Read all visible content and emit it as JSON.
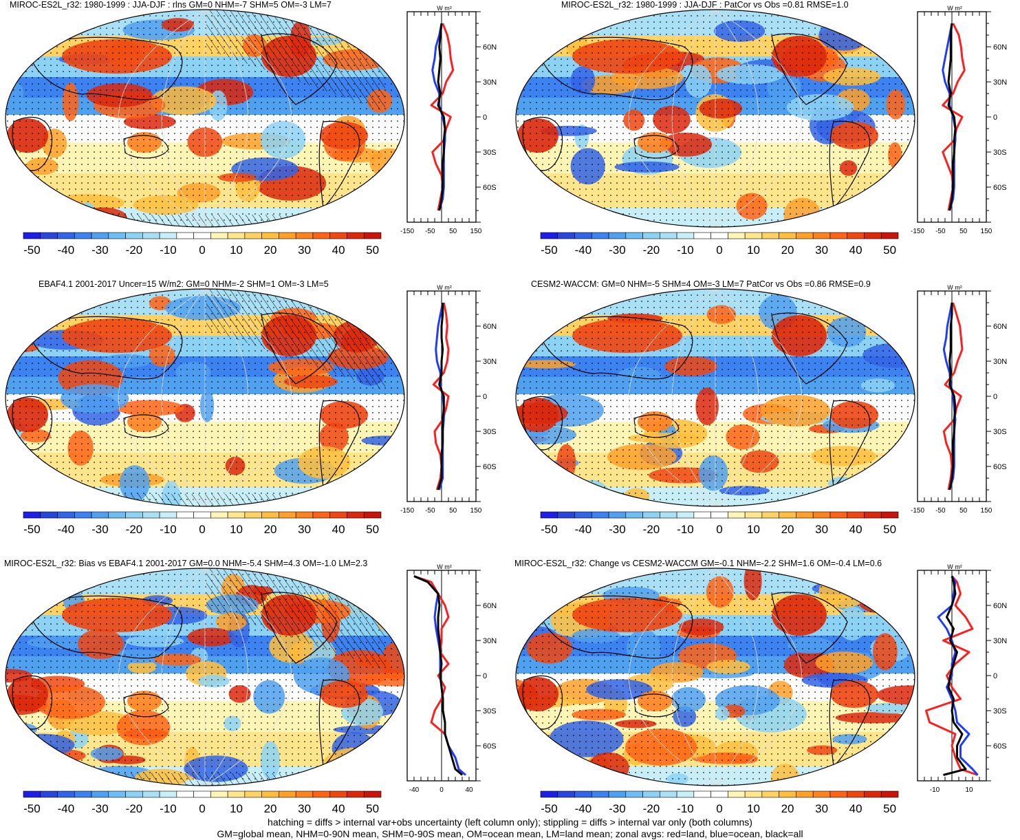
{
  "colorbar": {
    "labels": [
      "-50",
      "-40",
      "-30",
      "-20",
      "-10",
      "0",
      "10",
      "20",
      "30",
      "40",
      "50"
    ],
    "colors": [
      "#1e1ee6",
      "#2846dc",
      "#3264e6",
      "#3c82f0",
      "#50a0f0",
      "#6ebef5",
      "#8cd2f5",
      "#aae0f5",
      "#c8eef8",
      "#ffffff",
      "#ffffff",
      "#fff5b4",
      "#ffe68c",
      "#ffd264",
      "#ffbe3c",
      "#ffa028",
      "#ff821e",
      "#ff6414",
      "#f0460f",
      "#dc280a",
      "#c8140a"
    ]
  },
  "zonal_axis": {
    "unit": "W m²",
    "lat_labels": [
      "60N",
      "30N",
      "0",
      "30S",
      "60S"
    ]
  },
  "series_colors": {
    "land": "#ff1e1e",
    "ocean": "#1e3cff",
    "all": "#000000"
  },
  "footer": {
    "line1": "hatching = diffs > internal var+obs uncertainty (left column only); stippling = diffs > internal var only (both columns)",
    "line2": "GM=global mean, NHM=0-90N mean, SHM=0-90S mean, OM=ocean mean, LM=land mean; zonal avgs: red=land, blue=ocean, black=all"
  },
  "panels": [
    {
      "title": "MIROC-ES2L_r32: 1980-1999 : JJA-DJF : rlns GM=0 NHM=-7 SHM=5 OM=-3 LM=7",
      "xticks": [
        "-150",
        "-50",
        "50",
        "150"
      ],
      "xlim": [
        -150,
        150
      ],
      "hatch": true
    },
    {
      "title": "MIROC-ES2L_r32: 1980-1999 : JJA-DJF : PatCor vs Obs =0.81 RMSE=1.0",
      "xticks": [
        "-150",
        "-50",
        "50",
        "150"
      ],
      "xlim": [
        -150,
        150
      ],
      "hatch": false
    },
    {
      "title": "EBAF4.1 2001-2017 Uncer=15 W/m2: GM=0 NHM=-2 SHM=1 OM=-3 LM=5",
      "xticks": [
        "-150",
        "-50",
        "50",
        "150"
      ],
      "xlim": [
        -150,
        150
      ],
      "hatch": true
    },
    {
      "title": "CESM2-WACCM: GM=0 NHM=-5 SHM=4 OM=-3 LM=7 PatCor vs Obs =0.86 RMSE=0.9",
      "xticks": [
        "-150",
        "-50",
        "50",
        "150"
      ],
      "xlim": [
        -150,
        150
      ],
      "hatch": false
    },
    {
      "title": "MIROC-ES2L_r32: Bias vs EBAF4.1 2001-2017 GM=0.0 NHM=-5.4 SHM=4.3 OM=-1.0 LM=2.3",
      "xticks": [
        "-40",
        "0",
        "40"
      ],
      "xlim": [
        -50,
        50
      ],
      "hatch": true
    },
    {
      "title": "MIROC-ES2L_r32: Change vs CESM2-WACCM GM=-0.1 NHM=-2.2 SHM=1.6 OM=-0.4 LM=0.6",
      "xticks": [
        "-10",
        "10"
      ],
      "xlim": [
        -20,
        20
      ],
      "hatch": false
    }
  ],
  "chart_data": [
    {
      "type": "line",
      "title": "MIROC-ES2L_r32: 1980-1999 : JJA-DJF : rlns GM=0 NHM=-7 SHM=5 OM=-3 LM=7",
      "ylabel": "W m²",
      "xlim": [
        -150,
        150
      ],
      "ylim": [
        -90,
        90
      ],
      "y": [
        80,
        70,
        60,
        50,
        40,
        30,
        20,
        10,
        0,
        -10,
        -20,
        -30,
        -40,
        -50,
        -60,
        -70,
        -80
      ],
      "series": [
        {
          "name": "land",
          "values": [
            5,
            25,
            35,
            40,
            50,
            20,
            5,
            -45,
            40,
            20,
            10,
            -40,
            -25,
            0,
            5,
            -5,
            -15
          ]
        },
        {
          "name": "ocean",
          "values": [
            0,
            -10,
            -25,
            -30,
            -40,
            -30,
            -10,
            -10,
            5,
            15,
            15,
            10,
            10,
            10,
            10,
            5,
            -10
          ]
        },
        {
          "name": "all",
          "values": [
            0,
            -5,
            -10,
            -5,
            -10,
            -15,
            -5,
            -15,
            10,
            15,
            10,
            10,
            5,
            5,
            5,
            0,
            -10
          ]
        }
      ]
    },
    {
      "type": "line",
      "title": "MIROC-ES2L_r32: 1980-1999 : JJA-DJF : PatCor vs Obs =0.81 RMSE=1.0",
      "ylabel": "W m²",
      "xlim": [
        -150,
        150
      ],
      "ylim": [
        -90,
        90
      ],
      "y": [
        80,
        70,
        60,
        50,
        40,
        30,
        20,
        10,
        0,
        -10,
        -20,
        -30,
        -40,
        -50,
        -60,
        -70,
        -80
      ],
      "series": [
        {
          "name": "land",
          "values": [
            5,
            30,
            40,
            45,
            55,
            25,
            5,
            -40,
            45,
            20,
            10,
            -40,
            -20,
            0,
            5,
            -5,
            -15
          ]
        },
        {
          "name": "ocean",
          "values": [
            0,
            -10,
            -20,
            -30,
            -40,
            -30,
            -10,
            -10,
            5,
            15,
            15,
            10,
            10,
            10,
            10,
            5,
            -10
          ]
        },
        {
          "name": "all",
          "values": [
            0,
            -5,
            -5,
            -5,
            -10,
            -15,
            -5,
            -15,
            10,
            15,
            10,
            10,
            5,
            5,
            5,
            0,
            -10
          ]
        }
      ]
    },
    {
      "type": "line",
      "title": "EBAF4.1 2001-2017 Uncer=15 W/m2: GM=0 NHM=-2 SHM=1 OM=-3 LM=5",
      "ylabel": "W m²",
      "xlim": [
        -150,
        150
      ],
      "ylim": [
        -90,
        90
      ],
      "y": [
        80,
        70,
        60,
        50,
        40,
        30,
        20,
        10,
        0,
        -10,
        -20,
        -30,
        -40,
        -50,
        -60,
        -70,
        -80
      ],
      "series": [
        {
          "name": "land",
          "values": [
            10,
            20,
            25,
            20,
            30,
            25,
            10,
            -35,
            30,
            20,
            5,
            -30,
            -25,
            -5,
            0,
            -5,
            -20
          ]
        },
        {
          "name": "ocean",
          "values": [
            5,
            -5,
            -15,
            -20,
            -25,
            -20,
            -5,
            -5,
            5,
            10,
            10,
            5,
            5,
            5,
            5,
            5,
            -10
          ]
        },
        {
          "name": "all",
          "values": [
            5,
            5,
            0,
            0,
            5,
            0,
            0,
            -10,
            10,
            10,
            5,
            5,
            5,
            0,
            0,
            0,
            -15
          ]
        }
      ]
    },
    {
      "type": "line",
      "title": "CESM2-WACCM: GM=0 NHM=-5 SHM=4 OM=-3 LM=7 PatCor vs Obs =0.86 RMSE=0.9",
      "ylabel": "W m²",
      "xlim": [
        -150,
        150
      ],
      "ylim": [
        -90,
        90
      ],
      "y": [
        80,
        70,
        60,
        50,
        40,
        30,
        20,
        10,
        0,
        -10,
        -20,
        -30,
        -40,
        -50,
        -60,
        -70,
        -80
      ],
      "series": [
        {
          "name": "land",
          "values": [
            5,
            20,
            35,
            40,
            45,
            25,
            10,
            -30,
            40,
            20,
            10,
            -35,
            -25,
            -5,
            0,
            -5,
            -15
          ]
        },
        {
          "name": "ocean",
          "values": [
            0,
            -10,
            -20,
            -25,
            -35,
            -25,
            -10,
            -5,
            5,
            10,
            15,
            10,
            10,
            10,
            10,
            5,
            -10
          ]
        },
        {
          "name": "all",
          "values": [
            0,
            0,
            -5,
            -5,
            -5,
            -10,
            -5,
            -10,
            10,
            15,
            10,
            10,
            5,
            5,
            5,
            0,
            -10
          ]
        }
      ]
    },
    {
      "type": "line",
      "title": "MIROC-ES2L_r32: Bias vs EBAF4.1 2001-2017 GM=0.0 NHM=-5.4 SHM=4.3 OM=-1.0 LM=2.3",
      "ylabel": "W m²",
      "xlim": [
        -50,
        50
      ],
      "ylim": [
        -90,
        90
      ],
      "y": [
        85,
        80,
        70,
        60,
        50,
        40,
        30,
        20,
        10,
        0,
        -10,
        -20,
        -30,
        -40,
        -50,
        -60,
        -70,
        -80,
        -85
      ],
      "series": [
        {
          "name": "land",
          "values": [
            -40,
            -15,
            -5,
            5,
            10,
            0,
            0,
            -2,
            10,
            -5,
            5,
            0,
            -10,
            -15,
            5,
            10,
            20,
            25,
            30
          ]
        },
        {
          "name": "ocean",
          "values": [
            -40,
            -20,
            -5,
            -8,
            -10,
            -8,
            -5,
            -2,
            -2,
            -2,
            0,
            2,
            2,
            5,
            5,
            10,
            20,
            25,
            35
          ]
        },
        {
          "name": "all",
          "values": [
            -40,
            -20,
            -5,
            -3,
            -5,
            -5,
            -3,
            -2,
            0,
            -2,
            0,
            2,
            2,
            5,
            5,
            10,
            15,
            20,
            30
          ]
        }
      ]
    },
    {
      "type": "line",
      "title": "MIROC-ES2L_r32: Change vs CESM2-WACCM GM=-0.1 NHM=-2.2 SHM=1.6 OM=-0.4 LM=0.6",
      "ylabel": "W m²",
      "xlim": [
        -20,
        20
      ],
      "ylim": [
        -90,
        90
      ],
      "y": [
        85,
        80,
        70,
        60,
        50,
        40,
        30,
        20,
        10,
        0,
        -10,
        -20,
        -30,
        -40,
        -50,
        -60,
        -70,
        -80,
        -85
      ],
      "series": [
        {
          "name": "land",
          "values": [
            0,
            3,
            5,
            2,
            8,
            12,
            -5,
            10,
            2,
            -3,
            0,
            5,
            -15,
            -13,
            2,
            0,
            2,
            5,
            15
          ]
        },
        {
          "name": "ocean",
          "values": [
            0,
            2,
            1,
            0,
            -8,
            -3,
            0,
            2,
            0,
            0,
            -3,
            0,
            2,
            3,
            10,
            5,
            5,
            12,
            15
          ]
        },
        {
          "name": "all",
          "values": [
            0,
            1,
            2,
            0,
            -3,
            1,
            -1,
            3,
            1,
            -1,
            -2,
            1,
            0,
            1,
            6,
            3,
            3,
            8,
            -5
          ]
        }
      ]
    }
  ]
}
